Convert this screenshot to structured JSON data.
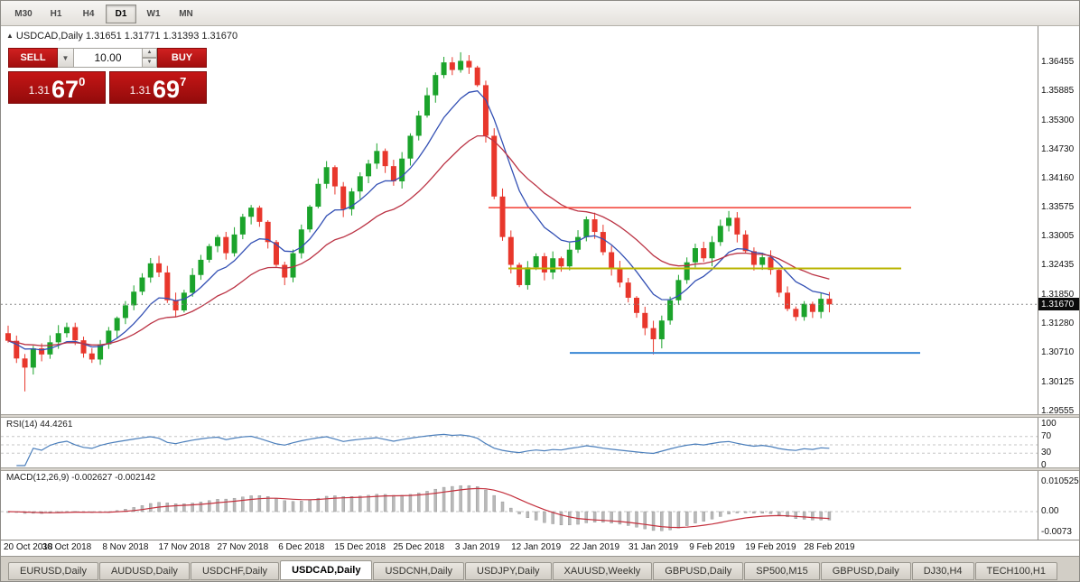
{
  "toolbar": {
    "timeframes": [
      {
        "label": "M30",
        "active": false
      },
      {
        "label": "H1",
        "active": false
      },
      {
        "label": "H4",
        "active": false
      },
      {
        "label": "D1",
        "active": true
      },
      {
        "label": "W1",
        "active": false
      },
      {
        "label": "MN",
        "active": false
      }
    ]
  },
  "chart_header": {
    "text": "USDCAD,Daily 1.31651 1.31771 1.31393 1.31670",
    "symbol": "USDCAD",
    "period": "Daily",
    "open": "1.31651",
    "high": "1.31771",
    "low": "1.31393",
    "close": "1.31670"
  },
  "trade_panel": {
    "sell_label": "SELL",
    "buy_label": "BUY",
    "volume": "10.00",
    "sell": {
      "small": "1.31",
      "big": "67",
      "sup": "0",
      "full": "1.31670"
    },
    "buy": {
      "small": "1.31",
      "big": "69",
      "sup": "7",
      "full": "1.31697"
    },
    "panel_color": "#b21212"
  },
  "price_axis": {
    "labels": [
      "1.36455",
      "1.35885",
      "1.35300",
      "1.34730",
      "1.34160",
      "1.33575",
      "1.33005",
      "1.32435",
      "1.31850",
      "1.31280",
      "1.30710",
      "1.30125",
      "1.29555"
    ],
    "current": "1.31670"
  },
  "indicators_text": {
    "rsi": "RSI(14) 44.4261",
    "macd": "MACD(12,26,9) -0.002627 -0.002142"
  },
  "chart_data": {
    "type": "candlestick",
    "title": "USDCAD,Daily",
    "ylim": [
      1.295,
      1.3713
    ],
    "x_labels": [
      "20 Oct 2018",
      "30 Oct 2018",
      "8 Nov 2018",
      "17 Nov 2018",
      "27 Nov 2018",
      "6 Dec 2018",
      "15 Dec 2018",
      "25 Dec 2018",
      "3 Jan 2019",
      "12 Jan 2019",
      "22 Jan 2019",
      "31 Jan 2019",
      "9 Feb 2019",
      "19 Feb 2019",
      "28 Feb 2019"
    ],
    "x_label_every": 7,
    "colors": {
      "up": "#1ba32b",
      "down": "#e8372c"
    },
    "current_price": 1.3167,
    "candles": {
      "first_open": 1.311,
      "closes": [
        1.3095,
        1.306,
        1.3042,
        1.308,
        1.3068,
        1.3092,
        1.311,
        1.3122,
        1.3096,
        1.307,
        1.3058,
        1.3088,
        1.3115,
        1.314,
        1.3165,
        1.3192,
        1.322,
        1.3248,
        1.323,
        1.3175,
        1.3155,
        1.319,
        1.3225,
        1.3255,
        1.3282,
        1.33,
        1.3268,
        1.3305,
        1.334,
        1.3358,
        1.333,
        1.329,
        1.3245,
        1.322,
        1.3268,
        1.3315,
        1.336,
        1.3405,
        1.3438,
        1.34,
        1.3355,
        1.339,
        1.342,
        1.3445,
        1.347,
        1.344,
        1.341,
        1.3455,
        1.35,
        1.354,
        1.358,
        1.362,
        1.3645,
        1.363,
        1.3648,
        1.3635,
        1.36,
        1.35,
        1.338,
        1.33,
        1.3245,
        1.3205,
        1.324,
        1.3262,
        1.323,
        1.3258,
        1.3242,
        1.3275,
        1.33,
        1.3335,
        1.331,
        1.327,
        1.3238,
        1.321,
        1.318,
        1.315,
        1.312,
        1.3098,
        1.3135,
        1.3175,
        1.3215,
        1.325,
        1.3278,
        1.3258,
        1.329,
        1.3322,
        1.3338,
        1.3305,
        1.3272,
        1.3245,
        1.326,
        1.3235,
        1.319,
        1.3158,
        1.3142,
        1.3168,
        1.3152,
        1.3178,
        1.3167
      ],
      "wick_overrides": {
        "2": {
          "low": 1.2995
        },
        "52": {
          "high": 1.3656
        },
        "54": {
          "high": 1.3665
        },
        "60": {
          "low": 1.3228
        },
        "77": {
          "low": 1.3068
        },
        "78": {
          "low": 1.308
        }
      }
    },
    "overlays": {
      "ma_fast": {
        "type": "ema",
        "period": 9,
        "color": "#3350b4"
      },
      "ma_slow": {
        "type": "ema",
        "period": 22,
        "color": "#bb3344"
      },
      "hlines": [
        {
          "name": "red-resistance-line",
          "price": 1.3358,
          "color": "#f23b31",
          "x1": 540,
          "x2": 1008,
          "width": 1.4
        },
        {
          "name": "yellow-pivot-line",
          "price": 1.3238,
          "color": "#b9b400",
          "x1": 562,
          "x2": 997,
          "width": 2
        },
        {
          "name": "blue-support-line",
          "price": 1.3071,
          "color": "#3a87d4",
          "x1": 630,
          "x2": 1018,
          "width": 2
        }
      ]
    },
    "indicators": {
      "rsi": {
        "period": 14,
        "current": "44.4261",
        "levels": [
          70,
          50,
          30
        ],
        "axis": [
          100,
          70,
          30,
          0
        ],
        "color": "#4a7ebb"
      },
      "macd": {
        "fast": 12,
        "slow": 26,
        "signal": 9,
        "current_main": "-0.002627",
        "current_signal": "-0.002142",
        "axis_labels": [
          "0.010525",
          "0.00",
          "-0.0073"
        ],
        "axis_values": [
          0.010525,
          0,
          -0.0073
        ],
        "histogram_color": "#b9b9b9",
        "signal_color": "#c4303d"
      }
    }
  },
  "tabs": {
    "active_index": 3,
    "items": [
      "EURUSD,Daily",
      "AUDUSD,Daily",
      "USDCHF,Daily",
      "USDCAD,Daily",
      "USDCNH,Daily",
      "USDJPY,Daily",
      "XAUUSD,Weekly",
      "GBPUSD,Daily",
      "SP500,M15",
      "GBPUSD,Daily",
      "DJ30,H4",
      "TECH100,H1"
    ]
  }
}
